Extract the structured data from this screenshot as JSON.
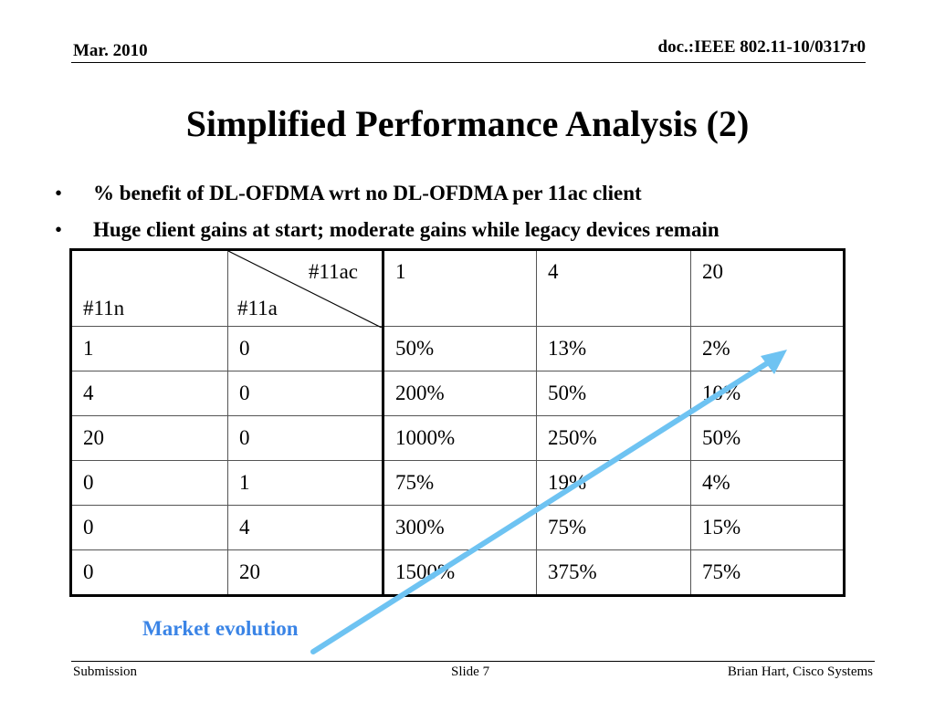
{
  "header": {
    "date": "Mar. 2010",
    "doc_id": "doc.:IEEE 802.11-10/0317r0"
  },
  "title": "Simplified Performance Analysis (2)",
  "bullets": [
    "% benefit of DL-OFDMA wrt no DL-OFDMA per 11ac client",
    "Huge client gains at start; moderate gains while legacy devices remain"
  ],
  "table": {
    "corner_left": "#11n",
    "corner_mid_bottom": "#11a",
    "corner_mid_top": "#11ac",
    "col_headers": [
      "1",
      "4",
      "20"
    ],
    "rows": [
      [
        "1",
        "0",
        "50%",
        "13%",
        "2%"
      ],
      [
        "4",
        "0",
        "200%",
        "50%",
        "10%"
      ],
      [
        "20",
        "0",
        "1000%",
        "250%",
        "50%"
      ],
      [
        "0",
        "1",
        "75%",
        "19%",
        "4%"
      ],
      [
        "0",
        "4",
        "300%",
        "75%",
        "15%"
      ],
      [
        "0",
        "20",
        "1500%",
        "375%",
        "75%"
      ]
    ]
  },
  "annotation": {
    "label": "Market evolution",
    "arrow_color": "#6ec3f2"
  },
  "footer": {
    "left": "Submission",
    "center": "Slide 7",
    "right": "Brian Hart, Cisco Systems"
  }
}
